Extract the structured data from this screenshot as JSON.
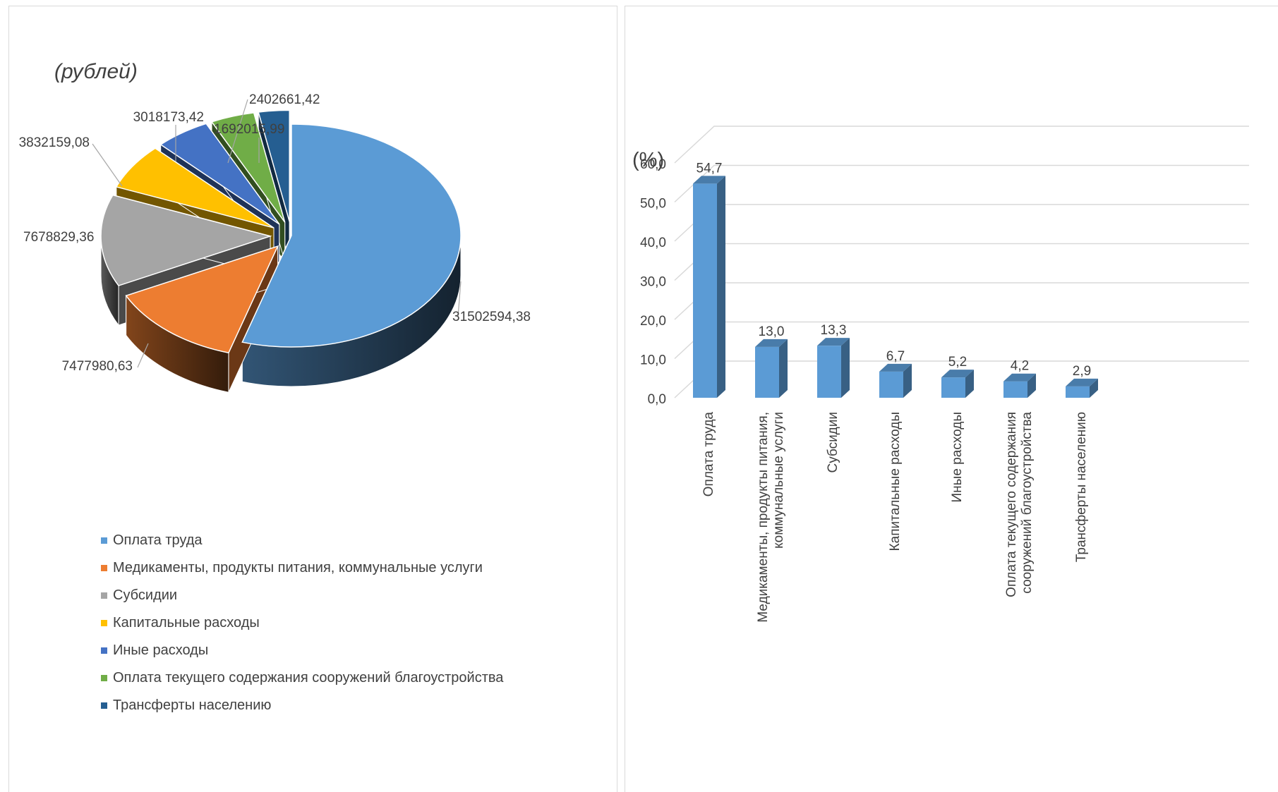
{
  "colors": {
    "accent_blue": "#5b9bd5",
    "gridline": "#d9d9d9",
    "panel_border": "#d9d9d9",
    "text": "#404040"
  },
  "pie_panel": {
    "unit_label": "(рублей)"
  },
  "bar_panel": {
    "unit_label": "(%)"
  },
  "chart_data": [
    {
      "type": "pie",
      "title": "(рублей)",
      "categories": [
        "Оплата труда",
        "Медикаменты, продукты питания, коммунальные услуги",
        "Субсидии",
        "Капитальные расходы",
        "Иные расходы",
        "Оплата текущего содержания сооружений благоустройства",
        "Трансферты населению"
      ],
      "values": [
        31502594.38,
        7477980.63,
        7678829.36,
        3832159.08,
        3018173.42,
        2402661.42,
        1692015.99
      ],
      "data_labels": [
        "31502594,38",
        "7477980,63",
        "7678829,36",
        "3832159,08",
        "3018173,42",
        "2402661,42",
        "1692015,99"
      ],
      "colors": [
        "#5b9bd5",
        "#ed7d31",
        "#a5a5a5",
        "#ffc000",
        "#4472c4",
        "#70ad47",
        "#255e91"
      ],
      "legend_position": "bottom-left",
      "style": "3D exploded pie"
    },
    {
      "type": "bar",
      "title": "(%)",
      "categories": [
        "Оплата труда",
        "Медикаменты, продукты питания, коммунальные услуги",
        "Субсидии",
        "Капитальные расходы",
        "Иные расходы",
        "Оплата текущего содержания сооружений благоустройства",
        "Трансферты населению"
      ],
      "category_label_lines": [
        [
          "Оплата труда"
        ],
        [
          "Медикаменты, продукты питания,",
          "коммунальные услуги"
        ],
        [
          "Субсидии"
        ],
        [
          "Капитальные расходы"
        ],
        [
          "Иные расходы"
        ],
        [
          "Оплата текущего содержания",
          "сооружений благоустройства"
        ],
        [
          "Трансферты населению"
        ]
      ],
      "values": [
        54.7,
        13.0,
        13.3,
        6.7,
        5.2,
        4.2,
        2.9
      ],
      "data_labels": [
        "54,7",
        "13,0",
        "13,3",
        "6,7",
        "5,2",
        "4,2",
        "2,9"
      ],
      "ylim": [
        0,
        60
      ],
      "yticks": [
        "0,0",
        "10,0",
        "20,0",
        "30,0",
        "40,0",
        "50,0",
        "60,0"
      ],
      "grid": true,
      "bar_color": "#5b9bd5",
      "style": "3D column"
    }
  ]
}
